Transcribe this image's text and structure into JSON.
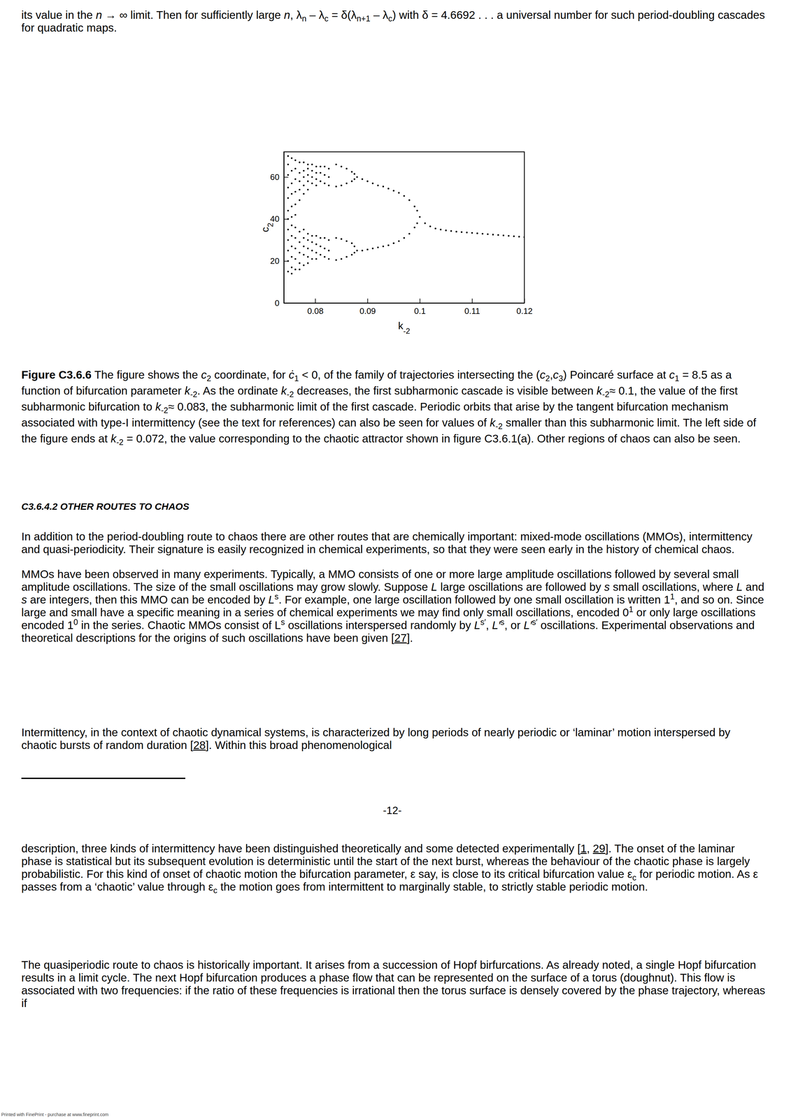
{
  "chart_data": {
    "type": "scatter",
    "x_label": "k-2",
    "y_label": "c2",
    "xlim": [
      0.074,
      0.12
    ],
    "xticks": [
      0.08,
      0.09,
      0.1,
      0.11,
      0.12
    ],
    "ylim": [
      0,
      72
    ],
    "yticks": [
      0,
      20,
      40,
      60
    ],
    "color": "#000000",
    "marker": "dot",
    "x": [
      0.1,
      0.101,
      0.102,
      0.103,
      0.104,
      0.105,
      0.106,
      0.107,
      0.108,
      0.109,
      0.11,
      0.111,
      0.112,
      0.113,
      0.114,
      0.115,
      0.116,
      0.117,
      0.118,
      0.119,
      0.12,
      0.0995,
      0.099,
      0.098,
      0.097,
      0.096,
      0.095,
      0.094,
      0.093,
      0.092,
      0.091,
      0.09,
      0.089,
      0.088,
      0.0995,
      0.099,
      0.098,
      0.097,
      0.096,
      0.095,
      0.094,
      0.093,
      0.092,
      0.091,
      0.09,
      0.089,
      0.088,
      0.0875,
      0.087,
      0.086,
      0.085,
      0.084,
      0.0875,
      0.087,
      0.086,
      0.085,
      0.084,
      0.0875,
      0.087,
      0.086,
      0.085,
      0.084,
      0.0875,
      0.087,
      0.086,
      0.085,
      0.084,
      0.0748,
      0.0748,
      0.0748,
      0.0748,
      0.0748,
      0.0748,
      0.0748,
      0.0748,
      0.0748,
      0.0748,
      0.0748,
      0.0748,
      0.0755,
      0.0755,
      0.0755,
      0.0755,
      0.0755,
      0.0755,
      0.0755,
      0.0755,
      0.0755,
      0.0755,
      0.0755,
      0.0755,
      0.0762,
      0.0762,
      0.0762,
      0.0762,
      0.0762,
      0.0762,
      0.0762,
      0.0762,
      0.0762,
      0.0762,
      0.0762,
      0.077,
      0.077,
      0.077,
      0.077,
      0.077,
      0.077,
      0.077,
      0.077,
      0.077,
      0.077,
      0.0778,
      0.0778,
      0.0778,
      0.0778,
      0.0778,
      0.0778,
      0.0778,
      0.0778,
      0.0778,
      0.0778,
      0.0786,
      0.0786,
      0.0786,
      0.0786,
      0.0786,
      0.0786,
      0.0786,
      0.0786,
      0.0786,
      0.0786,
      0.0794,
      0.0794,
      0.0794,
      0.0794,
      0.0794,
      0.0794,
      0.0794,
      0.0794,
      0.0802,
      0.0802,
      0.0802,
      0.0802,
      0.0802,
      0.0802,
      0.0802,
      0.0802,
      0.081,
      0.081,
      0.081,
      0.081,
      0.081,
      0.081,
      0.0818,
      0.0818,
      0.0818,
      0.0818,
      0.0818,
      0.0818,
      0.0826,
      0.0826,
      0.0826,
      0.0826,
      0.0826,
      0.0826
    ],
    "values": [
      41,
      38,
      36.5,
      35.5,
      35,
      34.6,
      34.3,
      34,
      33.8,
      33.6,
      33.4,
      33.2,
      33,
      32.8,
      32.6,
      32.4,
      32.2,
      32,
      31.8,
      31.6,
      31.4,
      44,
      46,
      49,
      51,
      52.5,
      53.5,
      54.5,
      55.5,
      56,
      57,
      58,
      59,
      60,
      38,
      36,
      33,
      31,
      29.5,
      28.5,
      27.5,
      27,
      26.5,
      26,
      25.5,
      25,
      25,
      61.5,
      62.5,
      64,
      65,
      66,
      59,
      58,
      57,
      56,
      55.5,
      27,
      28.5,
      29.5,
      30.5,
      31,
      24,
      23,
      22,
      21,
      20.5,
      70,
      66,
      61,
      55,
      50,
      44,
      40,
      35,
      30,
      25,
      20,
      15,
      69,
      63,
      57,
      52,
      46,
      41,
      37,
      32,
      27,
      22,
      17,
      14,
      68,
      64,
      59,
      53,
      47,
      42,
      36,
      31,
      26,
      21,
      16,
      67,
      62,
      58,
      54,
      49,
      34,
      29,
      24,
      19,
      16,
      67,
      63,
      60,
      56,
      52,
      35,
      31,
      27,
      23,
      18,
      66,
      64,
      61,
      58,
      54,
      33,
      30,
      26,
      22,
      19,
      66,
      63,
      60,
      57,
      32,
      29,
      25,
      21,
      65,
      62,
      59,
      56,
      32,
      28,
      24,
      21,
      65,
      62,
      58,
      31,
      27,
      23,
      65,
      61,
      57,
      31,
      26,
      22,
      64,
      60,
      56,
      30,
      25,
      21
    ]
  },
  "document": {
    "blocks": [
      {
        "runs": [
          "its value in the ",
          {
            "i": "n"
          },
          " → ∞ limit. Then for sufficiently large ",
          {
            "i": "n"
          },
          ", λ",
          {
            "sub": "n"
          },
          " – λ",
          {
            "sub": "c"
          },
          " = δ(λ",
          {
            "sub": "n+1"
          },
          " – λ",
          {
            "sub": "c"
          },
          ") with δ = 4.6692 . . . a universal number for such period-doubling cascades for quadratic maps."
        ]
      },
      {
        "runs": [
          {
            "b": "Figure C3.6.6"
          },
          " The figure shows the ",
          {
            "i": "c"
          },
          {
            "sub": "2"
          },
          " coordinate, for ",
          {
            "i": "ċ"
          },
          {
            "sub": "1"
          },
          " < 0, of the family of trajectories intersecting the (",
          {
            "i": "c"
          },
          {
            "sub": "2"
          },
          ",",
          {
            "i": "c"
          },
          {
            "sub": "3"
          },
          ") Poincaré surface at ",
          {
            "i": "c"
          },
          {
            "sub": "1"
          },
          " = 8.5 as a function of bifurcation parameter ",
          {
            "i": "k"
          },
          {
            "sub": "-2"
          },
          ". As the ordinate ",
          {
            "i": "k"
          },
          {
            "sub": "-2"
          },
          " decreases, the first subharmonic cascade is visible between ",
          {
            "i": "k"
          },
          {
            "sub": "-2"
          },
          "≈ 0.1, the value of the first subharmonic bifurcation to ",
          {
            "i": "k"
          },
          {
            "sub": "-2"
          },
          "≈ 0.083, the subharmonic limit of the first cascade. Periodic orbits that arise by the tangent bifurcation mechanism associated with type-I intermittency (see the text for references) can also be seen for values of ",
          {
            "i": "k"
          },
          {
            "sub": "-2"
          },
          " smaller than this subharmonic limit. The left side of the figure ends at ",
          {
            "i": "k"
          },
          {
            "sub": "-2"
          },
          " = 0.072, the value corresponding to the chaotic attractor shown in figure C3.6.1(a). Other regions of chaos can also be seen."
        ]
      },
      {
        "runs": [
          "C3.6.4.2 OTHER ROUTES TO CHAOS"
        ]
      },
      {
        "runs": [
          "In addition to the period-doubling route to chaos there are other routes that are chemically important: mixed-mode oscillations (MMOs), intermittency and quasi-periodicity. Their signature is easily recognized in chemical experiments, so that they were seen early in the history of chemical chaos."
        ]
      },
      {
        "runs": [
          "MMOs have been observed in many experiments. Typically, a MMO consists of one or more large amplitude oscillations followed by several small amplitude oscillations. The size of the small oscillations may grow slowly. Suppose ",
          {
            "i": "L"
          },
          " large oscillations are followed by ",
          {
            "i": "s"
          },
          " small oscillations, where ",
          {
            "i": "L"
          },
          " and ",
          {
            "i": "s"
          },
          " are integers, then this MMO can be encoded by ",
          {
            "i": "L"
          },
          {
            "sup": "s"
          },
          ". For example, one large oscillation followed by one small oscillation is written 1",
          {
            "sup": "1"
          },
          ", and so on. Since large and small have a specific meaning in a series of chemical experiments we may find only small oscillations, encoded 0",
          {
            "sup": "1"
          },
          " or only large oscillations encoded 1",
          {
            "sup": "0"
          },
          " in the series. Chaotic MMOs consist of L",
          {
            "sup": "s"
          },
          " oscillations interspersed randomly by ",
          {
            "i": "L"
          },
          {
            "sup": "s′"
          },
          ", ",
          {
            "i": "L′"
          },
          {
            "sup": "s"
          },
          ", or ",
          {
            "i": "L′"
          },
          {
            "sup": "s′"
          },
          " oscillations. Experimental observations and theoretical descriptions for the origins of such oscillations have been given [",
          {
            "u": "27"
          },
          "]."
        ]
      },
      {
        "runs": [
          "Intermittency, in the context of chaotic dynamical systems, is characterized by long periods of nearly periodic or ‘laminar’ motion interspersed by chaotic bursts of random duration [",
          {
            "u": "28"
          },
          "]. Within this broad phenomenological"
        ]
      },
      {
        "runs": [
          "description, three kinds of intermittency have been distinguished theoretically and some detected experimentally [",
          {
            "u": "1"
          },
          ", ",
          {
            "u": "29"
          },
          "]. The onset of the laminar phase is statistical but its subsequent evolution is deterministic until the start of the next burst, whereas the behaviour of the chaotic phase is largely probabilistic. For this kind of onset of chaotic motion the bifurcation parameter, ε say, is close to its critical bifurcation value ε",
          {
            "sub": "c"
          },
          " for periodic motion. As ε passes from a ‘chaotic’ value through ε",
          {
            "sub": "c"
          },
          " the motion goes from intermittent to marginally stable, to strictly stable periodic motion."
        ]
      },
      {
        "runs": [
          "The quasiperiodic route to chaos is historically important. It arises from a succession of Hopf birfurcations. As already noted, a single Hopf bifurcation results in a limit cycle. The next Hopf bifurcation produces a phase flow that can be represented on the surface of a torus (doughnut). This flow is associated with two frequencies: if the ratio of these frequencies is irrational then the torus surface is densely covered by the phase trajectory, whereas if"
        ]
      }
    ],
    "page_number": "-12-",
    "footer": "Printed with FinePrint - purchase at www.fineprint.com"
  }
}
